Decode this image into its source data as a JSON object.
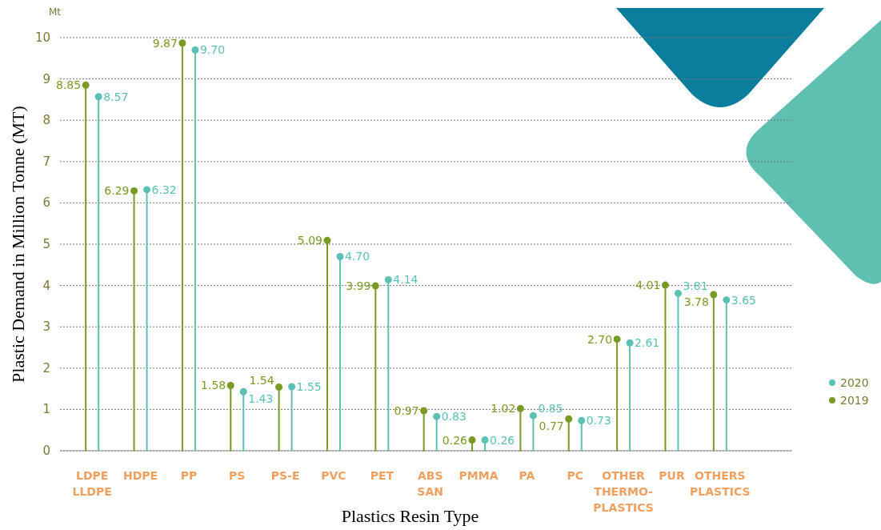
{
  "chart_data": {
    "type": "lollipop",
    "xlabel": "Plastics Resin Type",
    "ylabel": "Plastic Demand in Million Tonne (MT)",
    "annotations": [
      "Mt"
    ],
    "categories": [
      "LDPE\nLLDPE",
      "HDPE",
      "PP",
      "PS",
      "PS-E",
      "PVC",
      "PET",
      "ABS\nSAN",
      "PMMA",
      "PA",
      "PC",
      "OTHER\nTHERMO-\nPLASTICS",
      "PUR",
      "OTHERS\nPLASTICS"
    ],
    "series": [
      {
        "name": "2019",
        "color": "#7a9a26",
        "values": [
          8.85,
          6.29,
          9.87,
          1.58,
          1.54,
          5.09,
          3.99,
          0.97,
          0.26,
          1.02,
          0.77,
          2.7,
          4.01,
          3.78
        ],
        "value_labels": [
          "8.85",
          "6.29",
          "9.87",
          "1.58",
          "1.54",
          "5.09",
          "3.99",
          "0.97",
          "0.26",
          "1.02",
          "0.77",
          "2.70",
          "4.01",
          "3.78"
        ]
      },
      {
        "name": "2020",
        "color": "#5cc0b4",
        "values": [
          8.57,
          6.32,
          9.7,
          1.43,
          1.55,
          4.7,
          4.14,
          0.83,
          0.26,
          0.85,
          0.73,
          2.61,
          3.81,
          3.65
        ],
        "value_labels": [
          "8.57",
          "6.32",
          "9.70",
          "1.43",
          "1.55",
          "4.70",
          "4.14",
          "0.83",
          "0.26",
          "0.85",
          "0.73",
          "2.61",
          "3.81",
          "3.65"
        ]
      }
    ],
    "ylim": [
      0,
      10
    ],
    "yticks": [
      0,
      1,
      2,
      3,
      4,
      5,
      6,
      7,
      8,
      9,
      10
    ],
    "grid": "y",
    "legend": "right",
    "marker": "circle",
    "line_style": "solid"
  }
}
